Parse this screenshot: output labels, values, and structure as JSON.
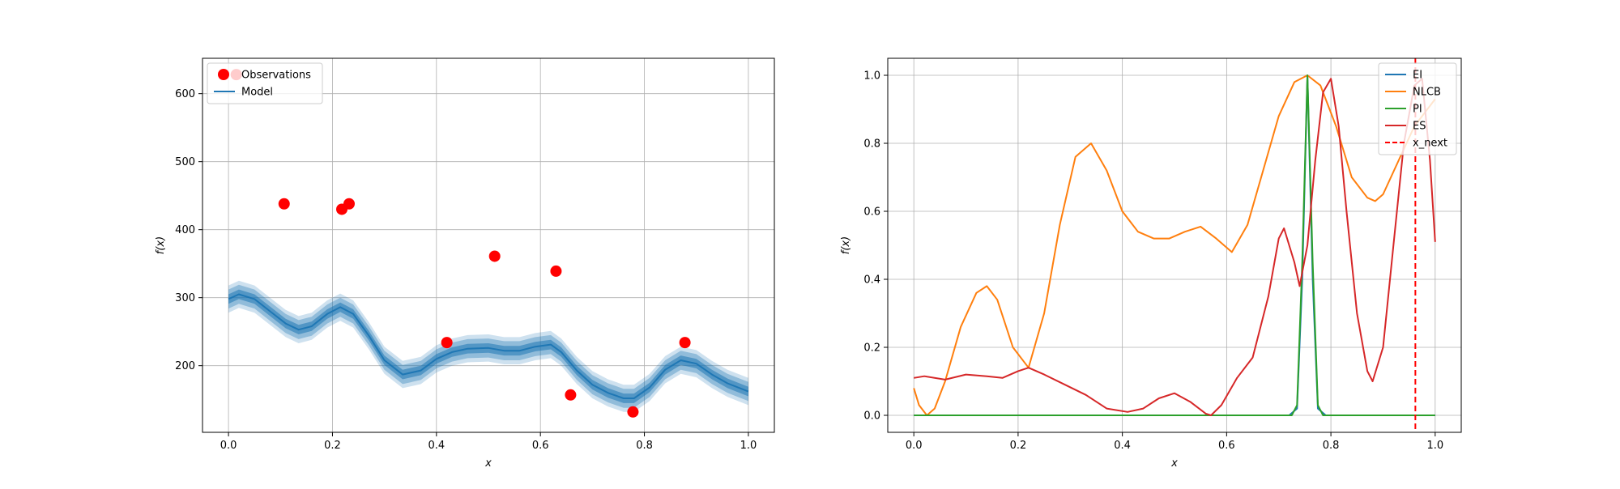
{
  "chart_data": [
    {
      "type": "scatter",
      "xlabel": "x",
      "ylabel": "f(x)",
      "xlim": [
        -0.05,
        1.05
      ],
      "ylim": [
        102,
        652
      ],
      "xticks": [
        0.0,
        0.2,
        0.4,
        0.6,
        0.8,
        1.0
      ],
      "xtick_labels": [
        "0.0",
        "0.2",
        "0.4",
        "0.6",
        "0.8",
        "1.0"
      ],
      "yticks": [
        200,
        300,
        400,
        500,
        600
      ],
      "ytick_labels": [
        "200",
        "300",
        "400",
        "500",
        "600"
      ],
      "grid": true,
      "legend": {
        "placement": "top-left",
        "entries": [
          "Observations",
          "Model"
        ]
      },
      "series": [
        {
          "name": "Observations",
          "kind": "scatter",
          "color": "#ff0000",
          "points": [
            {
              "x": 0.015,
              "y": 628
            },
            {
              "x": 0.107,
              "y": 438
            },
            {
              "x": 0.218,
              "y": 430
            },
            {
              "x": 0.232,
              "y": 438
            },
            {
              "x": 0.42,
              "y": 234
            },
            {
              "x": 0.512,
              "y": 361
            },
            {
              "x": 0.63,
              "y": 339
            },
            {
              "x": 0.658,
              "y": 157
            },
            {
              "x": 0.778,
              "y": 132
            },
            {
              "x": 0.878,
              "y": 234
            }
          ]
        },
        {
          "name": "Model",
          "kind": "line",
          "color": "#1f77b4",
          "x": [
            0.0,
            0.02,
            0.05,
            0.08,
            0.11,
            0.135,
            0.16,
            0.19,
            0.215,
            0.24,
            0.27,
            0.3,
            0.335,
            0.37,
            0.4,
            0.43,
            0.46,
            0.5,
            0.53,
            0.56,
            0.59,
            0.62,
            0.64,
            0.67,
            0.7,
            0.73,
            0.76,
            0.78,
            0.81,
            0.84,
            0.87,
            0.9,
            0.93,
            0.96,
            1.0
          ],
          "y": [
            298,
            305,
            298,
            280,
            262,
            253,
            258,
            276,
            286,
            276,
            244,
            208,
            187,
            193,
            210,
            220,
            225,
            226,
            222,
            222,
            228,
            231,
            220,
            193,
            172,
            160,
            152,
            152,
            168,
            194,
            208,
            203,
            187,
            174,
            162
          ],
          "bands": [
            {
              "label": "inner",
              "halfwidth": 7,
              "opacity": 0.55
            },
            {
              "label": "middle",
              "halfwidth": 14,
              "opacity": 0.35
            },
            {
              "label": "outer",
              "halfwidth": 20,
              "opacity": 0.22
            }
          ]
        }
      ]
    },
    {
      "type": "line",
      "xlabel": "x",
      "ylabel": "f(x)",
      "xlim": [
        -0.05,
        1.05
      ],
      "ylim": [
        -0.05,
        1.05
      ],
      "xticks": [
        0.0,
        0.2,
        0.4,
        0.6,
        0.8,
        1.0
      ],
      "xtick_labels": [
        "0.0",
        "0.2",
        "0.4",
        "0.6",
        "0.8",
        "1.0"
      ],
      "yticks": [
        0.0,
        0.2,
        0.4,
        0.6,
        0.8,
        1.0
      ],
      "ytick_labels": [
        "0.0",
        "0.2",
        "0.4",
        "0.6",
        "0.8",
        "1.0"
      ],
      "grid": true,
      "legend": {
        "placement": "top-right",
        "entries": [
          "EI",
          "NLCB",
          "PI",
          "ES",
          "x_next"
        ]
      },
      "series": [
        {
          "name": "EI",
          "color": "#1f77b4",
          "x": [
            0.0,
            0.72,
            0.735,
            0.745,
            0.755,
            0.765,
            0.775,
            0.79,
            1.0
          ],
          "y": [
            0,
            0,
            0.02,
            0.4,
            1.0,
            0.4,
            0.02,
            0,
            0
          ]
        },
        {
          "name": "NLCB",
          "color": "#ff7f0e",
          "x": [
            0.0,
            0.01,
            0.025,
            0.04,
            0.06,
            0.09,
            0.12,
            0.14,
            0.16,
            0.19,
            0.22,
            0.25,
            0.28,
            0.31,
            0.34,
            0.37,
            0.4,
            0.43,
            0.46,
            0.49,
            0.52,
            0.55,
            0.58,
            0.61,
            0.64,
            0.67,
            0.7,
            0.73,
            0.755,
            0.78,
            0.81,
            0.84,
            0.87,
            0.885,
            0.9,
            0.93,
            0.96,
            1.0
          ],
          "y": [
            0.08,
            0.03,
            0.0,
            0.02,
            0.1,
            0.26,
            0.36,
            0.38,
            0.34,
            0.2,
            0.14,
            0.3,
            0.56,
            0.76,
            0.8,
            0.72,
            0.6,
            0.54,
            0.52,
            0.52,
            0.54,
            0.555,
            0.52,
            0.48,
            0.56,
            0.72,
            0.88,
            0.98,
            1.0,
            0.97,
            0.85,
            0.7,
            0.64,
            0.63,
            0.65,
            0.75,
            0.85,
            0.93
          ]
        },
        {
          "name": "PI",
          "color": "#2ca02c",
          "x": [
            0.0,
            0.725,
            0.735,
            0.745,
            0.755,
            0.765,
            0.775,
            0.785,
            1.0
          ],
          "y": [
            0,
            0,
            0.03,
            0.45,
            1.0,
            0.45,
            0.03,
            0,
            0
          ]
        },
        {
          "name": "ES",
          "color": "#d62728",
          "x": [
            0.0,
            0.02,
            0.06,
            0.1,
            0.14,
            0.17,
            0.2,
            0.22,
            0.25,
            0.29,
            0.33,
            0.37,
            0.41,
            0.44,
            0.47,
            0.5,
            0.53,
            0.56,
            0.57,
            0.59,
            0.62,
            0.65,
            0.68,
            0.7,
            0.71,
            0.73,
            0.74,
            0.755,
            0.77,
            0.785,
            0.8,
            0.815,
            0.83,
            0.85,
            0.87,
            0.88,
            0.9,
            0.92,
            0.94,
            0.96,
            0.975,
            0.99,
            1.0
          ],
          "y": [
            0.11,
            0.115,
            0.105,
            0.12,
            0.115,
            0.11,
            0.13,
            0.14,
            0.12,
            0.09,
            0.06,
            0.02,
            0.01,
            0.02,
            0.05,
            0.065,
            0.04,
            0.005,
            0.0,
            0.03,
            0.11,
            0.17,
            0.35,
            0.52,
            0.55,
            0.45,
            0.38,
            0.5,
            0.75,
            0.95,
            0.99,
            0.85,
            0.6,
            0.3,
            0.13,
            0.1,
            0.2,
            0.5,
            0.8,
            0.97,
            0.99,
            0.75,
            0.51
          ]
        },
        {
          "name": "x_next",
          "kind": "vline",
          "color": "#ff0000",
          "x": 0.962
        }
      ]
    }
  ]
}
